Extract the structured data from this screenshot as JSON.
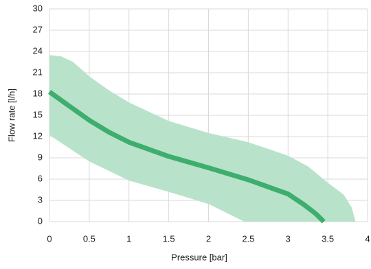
{
  "chart_data": {
    "type": "line",
    "xlabel": "Pressure  [bar]",
    "ylabel": "Flow rate [l/h]",
    "xlim": [
      0,
      4
    ],
    "ylim": [
      0,
      30
    ],
    "xticks": [
      0,
      0.5,
      1,
      1.5,
      2,
      2.5,
      3,
      3.5,
      4
    ],
    "yticks": [
      0,
      3,
      6,
      9,
      12,
      15,
      18,
      21,
      24,
      27,
      30
    ],
    "grid": true,
    "band": {
      "color": "#b9e2cb",
      "x": [
        0,
        0.15,
        0.3,
        0.5,
        0.75,
        1,
        1.5,
        2,
        2.5,
        3,
        3.25,
        3.5,
        3.7,
        3.8,
        3.85,
        2.45,
        2,
        1.5,
        1,
        0.5,
        0
      ],
      "values": [
        23.5,
        23.3,
        22.5,
        20.5,
        18.5,
        16.8,
        14.2,
        12.5,
        11.2,
        9.3,
        7.8,
        5.5,
        3.8,
        2,
        0,
        0,
        2.5,
        4.2,
        5.8,
        8.5,
        12.2
      ]
    },
    "series": [
      {
        "color": "#3dae6e",
        "x": [
          0,
          0.25,
          0.5,
          0.75,
          1,
          1.5,
          2,
          2.5,
          3,
          3.2,
          3.35,
          3.45
        ],
        "values": [
          18.3,
          16.3,
          14.3,
          12.6,
          11.2,
          9.2,
          7.6,
          5.9,
          3.9,
          2.4,
          1.1,
          0
        ]
      }
    ]
  }
}
